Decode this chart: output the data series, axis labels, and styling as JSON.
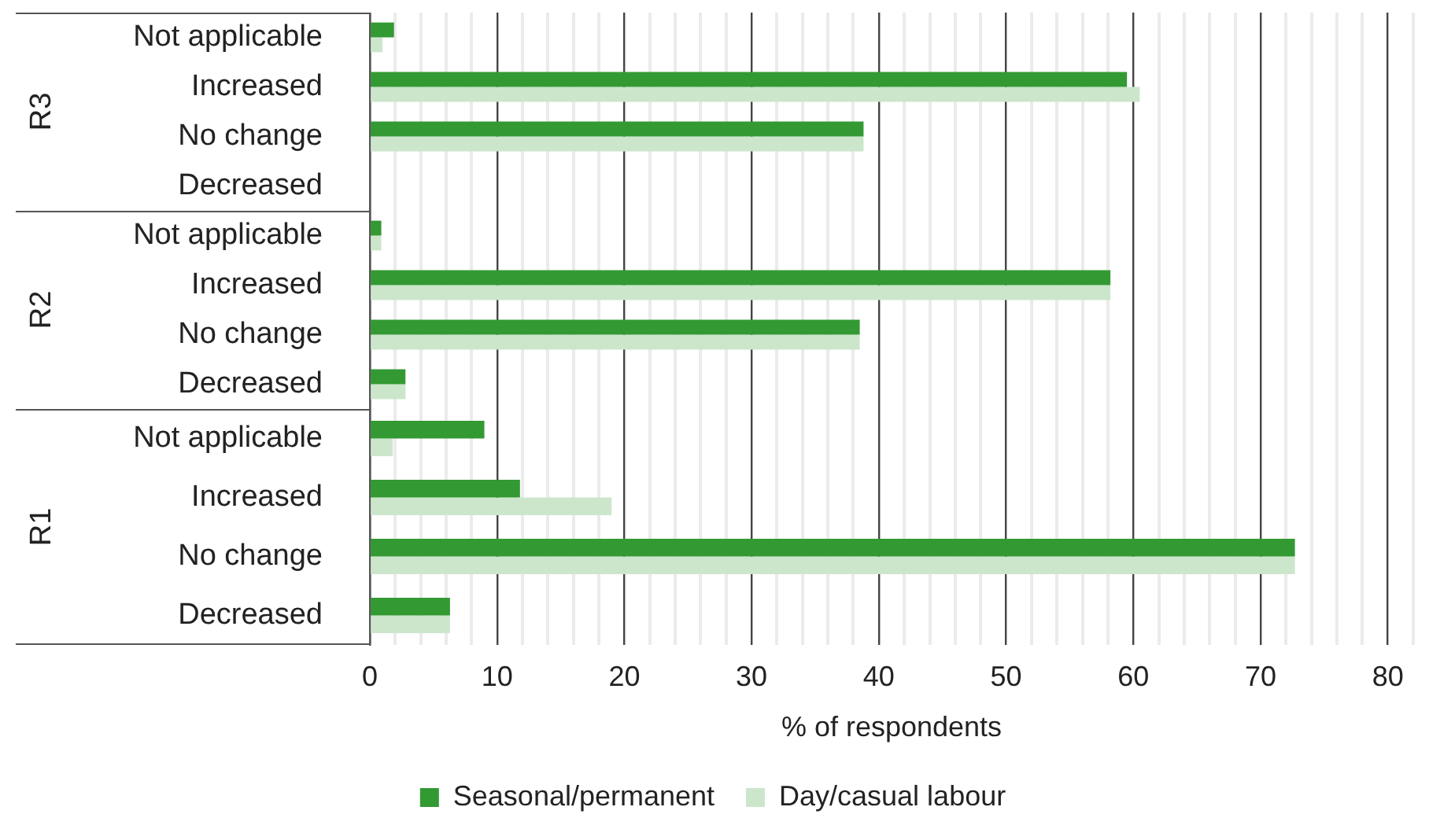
{
  "chart_data": [
    {
      "type": "bar",
      "orientation": "horizontal",
      "title": "R3",
      "categories": [
        "Not applicable",
        "Increased",
        "No change",
        "Decreased"
      ],
      "series": [
        {
          "color": "#339933",
          "values": [
            1.9,
            59.5,
            38.8,
            0
          ]
        },
        {
          "color": "#cce6cc",
          "values": [
            1,
            60.5,
            38.8,
            0
          ]
        }
      ],
      "xlim": [
        0,
        82
      ],
      "xticks": [
        0,
        {
          "value": 2,
          "label": null
        },
        {
          "value": 4,
          "label": null
        },
        {
          "value": 6,
          "label": null
        },
        {
          "value": 8,
          "label": null
        },
        10,
        {
          "value": 12,
          "label": null
        },
        {
          "value": 14,
          "label": null
        },
        {
          "value": 16,
          "label": null
        },
        {
          "value": 18,
          "label": null
        },
        20,
        {
          "value": 22,
          "label": null
        },
        {
          "value": 24,
          "label": null
        },
        {
          "value": 26,
          "label": null
        },
        {
          "value": 28,
          "label": null
        },
        30,
        {
          "value": 32,
          "label": null
        },
        {
          "value": 34,
          "label": null
        },
        {
          "value": 36,
          "label": null
        },
        {
          "value": 38,
          "label": null
        },
        40,
        {
          "value": 42,
          "label": null
        },
        {
          "value": 44,
          "label": null
        },
        {
          "value": 46,
          "label": null
        },
        {
          "value": 48,
          "label": null
        },
        50,
        {
          "value": 52,
          "label": null
        },
        {
          "value": 54,
          "label": null
        },
        {
          "value": 56,
          "label": null
        },
        {
          "value": 58,
          "label": null
        },
        60,
        {
          "value": 62,
          "label": null
        },
        {
          "value": 64,
          "label": null
        },
        {
          "value": 66,
          "label": null
        },
        {
          "value": 68,
          "label": null
        },
        70,
        {
          "value": 72,
          "label": null
        },
        {
          "value": 74,
          "label": null
        },
        {
          "value": 76,
          "label": null
        },
        {
          "value": 78,
          "label": null
        },
        80,
        {
          "value": 82,
          "label": null
        }
      ],
      "grid": "x",
      "tick_labels": "y"
    },
    {
      "type": "bar",
      "orientation": "horizontal",
      "title": "R2",
      "categories": [
        "Not applicable",
        "Increased",
        "No change",
        "Decreased"
      ],
      "series": [
        {
          "color": "#339933",
          "values": [
            0.9,
            58.2,
            38.5,
            2.8
          ]
        },
        {
          "color": "#cce6cc",
          "values": [
            0.9,
            58.2,
            38.5,
            2.8
          ]
        }
      ],
      "xlim": [
        0,
        82
      ],
      "xticks": [
        0,
        {
          "value": 2,
          "label": null
        },
        {
          "value": 4,
          "label": null
        },
        {
          "value": 6,
          "label": null
        },
        {
          "value": 8,
          "label": null
        },
        10,
        {
          "value": 12,
          "label": null
        },
        {
          "value": 14,
          "label": null
        },
        {
          "value": 16,
          "label": null
        },
        {
          "value": 18,
          "label": null
        },
        20,
        {
          "value": 22,
          "label": null
        },
        {
          "value": 24,
          "label": null
        },
        {
          "value": 26,
          "label": null
        },
        {
          "value": 28,
          "label": null
        },
        30,
        {
          "value": 32,
          "label": null
        },
        {
          "value": 34,
          "label": null
        },
        {
          "value": 36,
          "label": null
        },
        {
          "value": 38,
          "label": null
        },
        40,
        {
          "value": 42,
          "label": null
        },
        {
          "value": 44,
          "label": null
        },
        {
          "value": 46,
          "label": null
        },
        {
          "value": 48,
          "label": null
        },
        50,
        {
          "value": 52,
          "label": null
        },
        {
          "value": 54,
          "label": null
        },
        {
          "value": 56,
          "label": null
        },
        {
          "value": 58,
          "label": null
        },
        60,
        {
          "value": 62,
          "label": null
        },
        {
          "value": 64,
          "label": null
        },
        {
          "value": 66,
          "label": null
        },
        {
          "value": 68,
          "label": null
        },
        70,
        {
          "value": 72,
          "label": null
        },
        {
          "value": 74,
          "label": null
        },
        {
          "value": 76,
          "label": null
        },
        {
          "value": 78,
          "label": null
        },
        80,
        {
          "value": 82,
          "label": null
        }
      ],
      "grid": "x",
      "tick_labels": "y"
    },
    {
      "type": "bar",
      "orientation": "horizontal",
      "title": "R1",
      "xlabel": "% of respondents",
      "categories": [
        "Not applicable",
        "Increased",
        "No change",
        "Decreased"
      ],
      "series": [
        {
          "name": "Seasonal/permanent",
          "color": "#339933",
          "values": [
            9,
            11.8,
            72.7,
            6.3
          ]
        },
        {
          "name": "Day/casual labour",
          "color": "#cce6cc",
          "values": [
            1.8,
            19,
            72.7,
            6.3
          ]
        }
      ],
      "xlim": [
        0,
        82
      ],
      "xticks": [
        0,
        {
          "value": 2,
          "label": null
        },
        {
          "value": 4,
          "label": null
        },
        {
          "value": 6,
          "label": null
        },
        {
          "value": 8,
          "label": null
        },
        10,
        {
          "value": 12,
          "label": null
        },
        {
          "value": 14,
          "label": null
        },
        {
          "value": 16,
          "label": null
        },
        {
          "value": 18,
          "label": null
        },
        20,
        {
          "value": 22,
          "label": null
        },
        {
          "value": 24,
          "label": null
        },
        {
          "value": 26,
          "label": null
        },
        {
          "value": 28,
          "label": null
        },
        30,
        {
          "value": 32,
          "label": null
        },
        {
          "value": 34,
          "label": null
        },
        {
          "value": 36,
          "label": null
        },
        {
          "value": 38,
          "label": null
        },
        40,
        {
          "value": 42,
          "label": null
        },
        {
          "value": 44,
          "label": null
        },
        {
          "value": 46,
          "label": null
        },
        {
          "value": 48,
          "label": null
        },
        50,
        {
          "value": 52,
          "label": null
        },
        {
          "value": 54,
          "label": null
        },
        {
          "value": 56,
          "label": null
        },
        {
          "value": 58,
          "label": null
        },
        60,
        {
          "value": 62,
          "label": null
        },
        {
          "value": 64,
          "label": null
        },
        {
          "value": 66,
          "label": null
        },
        {
          "value": 68,
          "label": null
        },
        70,
        {
          "value": 72,
          "label": null
        },
        {
          "value": 74,
          "label": null
        },
        {
          "value": 76,
          "label": null
        },
        {
          "value": 78,
          "label": null
        },
        80,
        {
          "value": 82,
          "label": null
        }
      ],
      "grid": "x",
      "legend": "bottom"
    }
  ]
}
